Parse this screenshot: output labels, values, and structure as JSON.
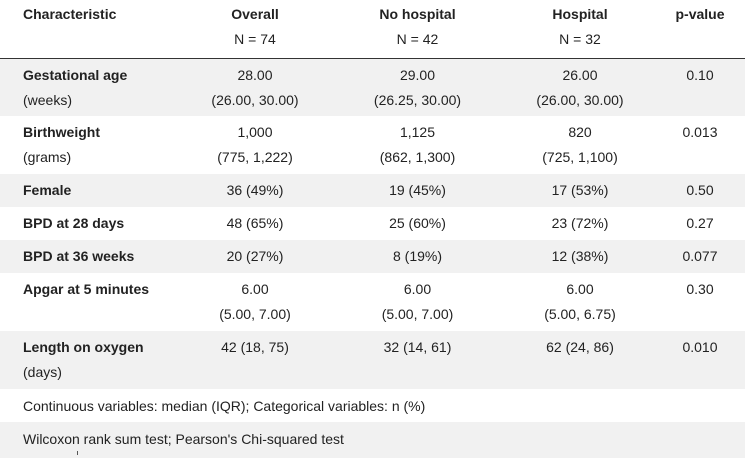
{
  "table": {
    "headers": [
      {
        "name": "Characteristic",
        "n": ""
      },
      {
        "name": "Overall",
        "n": "N = 74"
      },
      {
        "name": "No hospital",
        "n": "N = 42"
      },
      {
        "name": "Hospital",
        "n": "N = 32"
      },
      {
        "name": "p-value",
        "n": ""
      }
    ],
    "rows": [
      {
        "label": "Gestational age",
        "sublabel": "(weeks)",
        "overall": [
          "28.00",
          "(26.00, 30.00)"
        ],
        "no_hospital": [
          "29.00",
          "(26.25, 30.00)"
        ],
        "hospital": [
          "26.00",
          "(26.00, 30.00)"
        ],
        "p": "0.10"
      },
      {
        "label": "Birthweight",
        "sublabel": "(grams)",
        "overall": [
          "1,000",
          "(775, 1,222)"
        ],
        "no_hospital": [
          "1,125",
          "(862, 1,300)"
        ],
        "hospital": [
          "820",
          "(725, 1,100)"
        ],
        "p": "0.013"
      },
      {
        "label": "Female",
        "sublabel": "",
        "overall": [
          "36 (49%)",
          ""
        ],
        "no_hospital": [
          "19 (45%)",
          ""
        ],
        "hospital": [
          "17 (53%)",
          ""
        ],
        "p": "0.50"
      },
      {
        "label": "BPD at 28 days",
        "sublabel": "",
        "overall": [
          "48 (65%)",
          ""
        ],
        "no_hospital": [
          "25 (60%)",
          ""
        ],
        "hospital": [
          "23 (72%)",
          ""
        ],
        "p": "0.27"
      },
      {
        "label": "BPD at 36 weeks",
        "sublabel": "",
        "overall": [
          "20 (27%)",
          ""
        ],
        "no_hospital": [
          "8 (19%)",
          ""
        ],
        "hospital": [
          "12 (38%)",
          ""
        ],
        "p": "0.077"
      },
      {
        "label": "Apgar at 5 minutes",
        "sublabel": "",
        "overall": [
          "6.00",
          "(5.00, 7.00)"
        ],
        "no_hospital": [
          "6.00",
          "(5.00, 7.00)"
        ],
        "hospital": [
          "6.00",
          "(5.00, 6.75)"
        ],
        "p": "0.30"
      },
      {
        "label": "Length on oxygen",
        "sublabel": "(days)",
        "overall": [
          "42 (18, 75)",
          ""
        ],
        "no_hospital": [
          "32 (14, 61)",
          ""
        ],
        "hospital": [
          "62 (24, 86)",
          ""
        ],
        "p": "0.010"
      }
    ],
    "footnotes": [
      "Continuous variables: median (IQR); Categorical variables: n (%)",
      "Wilcoxon rank sum test; Pearson's Chi-squared test"
    ]
  }
}
